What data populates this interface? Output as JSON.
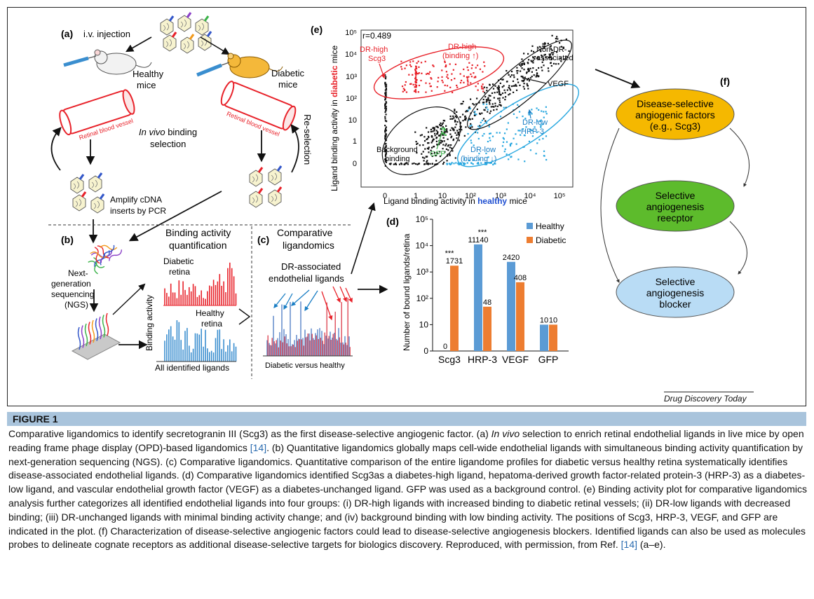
{
  "panel_a": {
    "label": "(a)",
    "iv_injection": "i.v. injection",
    "healthy_mice": [
      "Healthy",
      "mice"
    ],
    "diabetic_mice": [
      "Diabetic",
      "mice"
    ],
    "vessel_label": "Retinal blood vessel",
    "in_vivo": "In vivo",
    "binding": " binding",
    "selection": "selection",
    "reselection": "Re-selection",
    "amplify": [
      "Amplify cDNA",
      "inserts by PCR"
    ]
  },
  "panel_b": {
    "label": "(b)",
    "ngs": [
      "Next-",
      "generation",
      "sequencing",
      "(NGS)"
    ],
    "title": [
      "Binding activity",
      "quantification"
    ],
    "diabetic_retina": [
      "Diabetic",
      "retina"
    ],
    "healthy_retina": [
      "Healthy",
      "retina"
    ],
    "y_axis": "Binding activity",
    "x_axis": "All identified ligands"
  },
  "panel_c": {
    "label": "(c)",
    "title": [
      "Comparative",
      "ligandomics"
    ],
    "subtitle": [
      "DR-associated",
      "endothelial ligands"
    ],
    "x_axis": "Diabetic versus healthy"
  },
  "panel_d": {
    "label": "(d)",
    "chart_data": {
      "type": "bar",
      "categories": [
        "Scg3",
        "HRP-3",
        "VEGF",
        "GFP"
      ],
      "series": [
        {
          "name": "Healthy",
          "color": "#5b9bd5",
          "values": [
            0,
            11140,
            2420,
            10
          ]
        },
        {
          "name": "Diabetic",
          "color": "#ed7d31",
          "values": [
            1731,
            48,
            408,
            10
          ]
        }
      ],
      "data_labels": {
        "Healthy": [
          "0",
          "11140",
          "2420",
          "10"
        ],
        "Diabetic": [
          "1731",
          "48",
          "408",
          "10"
        ]
      },
      "significance": [
        "***",
        "***",
        "",
        ""
      ],
      "ylabel": "Number of bound ligands/retina",
      "y_scale": "log",
      "ylim": [
        1,
        100000
      ],
      "y_ticks": [
        "0",
        "10",
        "10²",
        "10³",
        "10⁴",
        "10⁵"
      ],
      "legend_position": "top-right"
    }
  },
  "panel_e": {
    "label": "(e)",
    "r_value": "r=0.489",
    "ylabel_pre": "Ligand binding activity in ",
    "ylabel_em": "diabetic",
    "ylabel_post": " mice",
    "xlabel_pre": "Ligand binding activity in ",
    "xlabel_em": "healthy",
    "xlabel_post": " mice",
    "ticks": [
      "0",
      "1",
      "10",
      "10²",
      "10³",
      "10⁴",
      "10⁵"
    ],
    "dr_high_scg3": [
      "DR-high",
      "Scg3"
    ],
    "dr_high_binding": [
      "DR-high",
      "(binding ↑)"
    ],
    "non_dr": [
      "Non-DR-",
      "associated"
    ],
    "vegf": "VEGF",
    "dr_low_hrp3": [
      "DR-low",
      "HRP-3"
    ],
    "dr_low_binding": [
      "DR-low",
      "(binding ↓)"
    ],
    "gfp": "GFP",
    "background": [
      "Background",
      "binding"
    ],
    "colors": {
      "red": "#e8222a",
      "blue": "#29a8e0",
      "green": "#3cb34a",
      "em_blue": "#1f4fd1"
    }
  },
  "panel_f": {
    "label": "(f)",
    "node1": [
      "Disease-selective",
      "angiogenic factors",
      "(e.g., Scg3)"
    ],
    "node2": [
      "Selective",
      "angiogenesis",
      "reecptor"
    ],
    "node3": [
      "Selective",
      "angiogenesis",
      "blocker"
    ],
    "colors": {
      "node1": "#f5b800",
      "node2": "#5dbb2c",
      "node3": "#b9dcf5"
    }
  },
  "source": "Drug Discovery Today",
  "caption": {
    "label": "FIGURE 1",
    "p1": "Comparative ligandomics to identify secretogranin III (Scg3) as the first disease-selective angiogenic factor. (a) ",
    "p2": "In vivo",
    "p3": " selection to enrich retinal endothelial ligands in live mice by open reading frame phage display (OPD)-based ligandomics ",
    "ref1": "[14]",
    "p4": ". (b) Quantitative ligandomics globally maps cell-wide endothelial ligands with simultaneous binding activity quantification by next-generation sequencing (NGS). (c) Comparative ligandomics. Quantitative comparison of the entire ligandome profiles for diabetic versus healthy retina systematically identifies disease-associated endothelial ligands. (d) Comparative ligandomics identified Scg3as a diabetes-high ligand, hepatoma-derived growth factor-related protein-3 (HRP-3) as a diabetes-low ligand, and vascular endothelial growth factor (VEGF) as a diabetes-unchanged ligand. GFP was used as a background control. (e) Binding activity plot for comparative ligandomics analysis further categorizes all identified endothelial ligands into four groups: (i) DR-high ligands with increased binding to diabetic retinal vessels; (ii) DR-low ligands with decreased binding; (iii) DR-unchanged ligands with minimal binding activity change; and (iv) background binding with low binding activity. The positions of Scg3, HRP-3, VEGF, and GFP are indicated in the plot. (f) Characterization of disease-selective angiogenic factors could lead to disease-selective angiogenesis blockers. Identified ligands can also be used as molecules probes to delineate cognate receptors as additional disease-selective targets for biologics discovery. Reproduced, with permission, from Ref. ",
    "ref2": "[14]",
    "p5": " (a–e)."
  }
}
